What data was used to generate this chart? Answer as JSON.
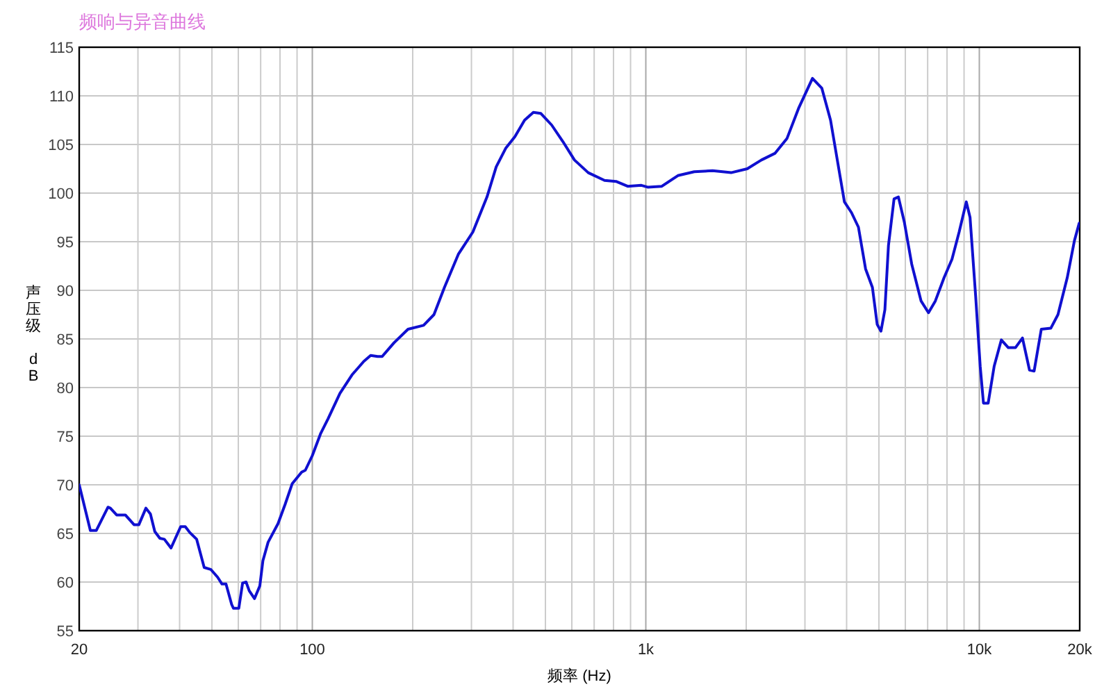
{
  "chart_data": {
    "type": "line",
    "title": "频响与异音曲线",
    "xlabel": "频率 (Hz)",
    "ylabel": "声压级 dB",
    "log": "x",
    "grid": true,
    "line_style": "solid",
    "marker": "none",
    "xlim": [
      20,
      20000
    ],
    "ylim": [
      55,
      115
    ],
    "xticks": [
      20,
      {
        "value": 30,
        "label": null
      },
      {
        "value": 40,
        "label": null
      },
      {
        "value": 50,
        "label": null
      },
      {
        "value": 60,
        "label": null
      },
      {
        "value": 70,
        "label": null
      },
      {
        "value": 80,
        "label": null
      },
      {
        "value": 90,
        "label": null
      },
      100,
      {
        "value": 200,
        "label": null
      },
      {
        "value": 300,
        "label": null
      },
      {
        "value": 400,
        "label": null
      },
      {
        "value": 500,
        "label": null
      },
      {
        "value": 600,
        "label": null
      },
      {
        "value": 700,
        "label": null
      },
      {
        "value": 800,
        "label": null
      },
      {
        "value": 900,
        "label": null
      },
      {
        "value": 1000,
        "label": "1k"
      },
      {
        "value": 2000,
        "label": null
      },
      {
        "value": 3000,
        "label": null
      },
      {
        "value": 4000,
        "label": null
      },
      {
        "value": 5000,
        "label": null
      },
      {
        "value": 6000,
        "label": null
      },
      {
        "value": 7000,
        "label": null
      },
      {
        "value": 8000,
        "label": null
      },
      {
        "value": 9000,
        "label": null
      },
      {
        "value": 10000,
        "label": "10k"
      },
      {
        "value": 20000,
        "label": "20k"
      }
    ],
    "yticks": [
      55,
      60,
      65,
      70,
      75,
      80,
      85,
      90,
      95,
      100,
      105,
      110,
      115
    ],
    "x": [
      20,
      21.6,
      22.5,
      24.4,
      24.8,
      25.9,
      27.5,
      29.2,
      30.2,
      31.7,
      32.7,
      33.7,
      34.9,
      36,
      37.7,
      40.3,
      41.6,
      42.9,
      45,
      47.4,
      49.6,
      52,
      53.6,
      55.1,
      57.3,
      58,
      60.2,
      61.8,
      63.3,
      64.7,
      67.1,
      69.6,
      71.1,
      73.7,
      78.9,
      82.9,
      87,
      92.9,
      95.3,
      100,
      106,
      111.5,
      121,
      131.5,
      142.7,
      149.6,
      157,
      162,
      175.7,
      193.6,
      215.6,
      231.6,
      249,
      274,
      303,
      334,
      356,
      380,
      405,
      433,
      460,
      484,
      522,
      564,
      611,
      672,
      752,
      814,
      882,
      970,
      1016,
      1117,
      1248,
      1397,
      1586,
      1802,
      2014,
      2221,
      2442,
      2649,
      2870,
      3160,
      3370,
      3580,
      3940,
      4136,
      4340,
      4560,
      4780,
      4940,
      5070,
      5210,
      5340,
      5550,
      5720,
      5960,
      6270,
      6690,
      7040,
      7380,
      7840,
      8280,
      8700,
      9140,
      9380,
      9750,
      10060,
      10290,
      10630,
      11080,
      11640,
      12220,
      12830,
      13470,
      14140,
      14600,
      15340,
      16380,
      17210,
      18350,
      19280,
      19930
    ],
    "series": [
      {
        "color": "#1010d0",
        "values": [
          70,
          65.3,
          65.3,
          67.7,
          67.6,
          66.9,
          66.9,
          65.9,
          65.9,
          67.6,
          67,
          65.2,
          64.5,
          64.4,
          63.5,
          65.7,
          65.7,
          65.1,
          64.4,
          61.5,
          61.3,
          60.5,
          59.8,
          59.8,
          57.7,
          57.3,
          57.3,
          59.9,
          60,
          59.1,
          58.3,
          59.6,
          62.2,
          64.1,
          66,
          68,
          70.1,
          71.3,
          71.5,
          73,
          75.3,
          76.8,
          79.4,
          81.3,
          82.7,
          83.3,
          83.2,
          83.2,
          84.6,
          86,
          86.4,
          87.5,
          90.3,
          93.7,
          96,
          99.6,
          102.7,
          104.6,
          105.8,
          107.5,
          108.3,
          108.2,
          107,
          105.3,
          103.4,
          102.1,
          101.3,
          101.2,
          100.7,
          100.8,
          100.6,
          100.7,
          101.8,
          102.2,
          102.3,
          102.1,
          102.5,
          103.4,
          104.1,
          105.6,
          108.7,
          111.8,
          110.8,
          107.5,
          99.1,
          98,
          96.5,
          92.2,
          90.3,
          86.5,
          85.8,
          88,
          94.6,
          99.4,
          99.6,
          97,
          92.7,
          88.9,
          87.7,
          88.9,
          91.3,
          93.2,
          96,
          99.1,
          97.5,
          89.4,
          82.2,
          78.4,
          78.4,
          82.2,
          84.9,
          84.1,
          84.1,
          85.1,
          81.8,
          81.7,
          86,
          86.1,
          87.5,
          91.3,
          95.1,
          96.9
        ]
      }
    ]
  }
}
